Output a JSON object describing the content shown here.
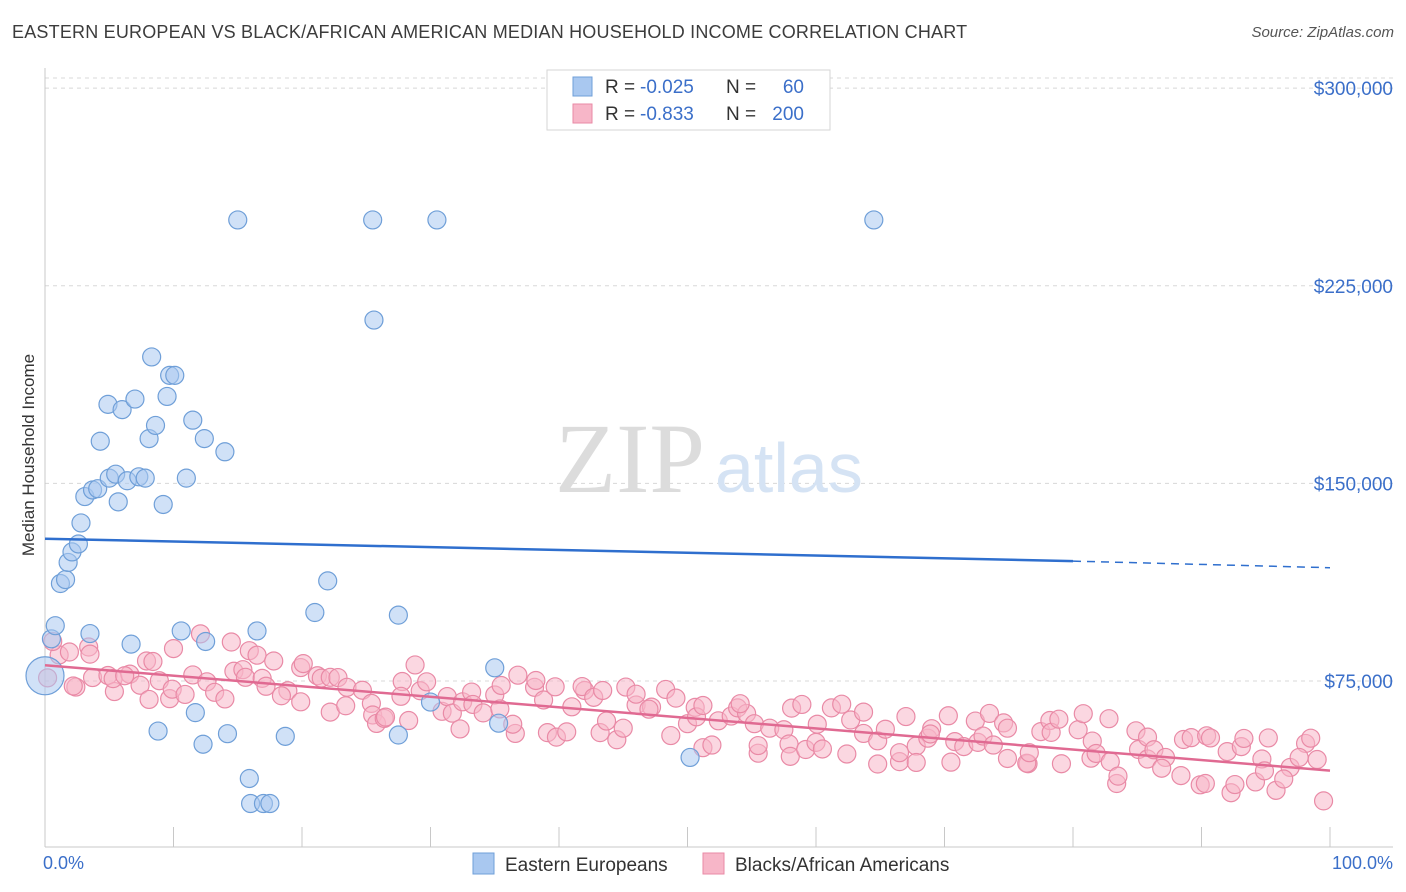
{
  "header": {
    "title": "EASTERN EUROPEAN VS BLACK/AFRICAN AMERICAN MEDIAN HOUSEHOLD INCOME CORRELATION CHART",
    "source": "Source: ZipAtlas.com"
  },
  "watermark": {
    "zip": "ZIP",
    "atlas": "atlas"
  },
  "colors": {
    "blue_fill": "#a9c8f0",
    "blue_stroke": "#6f9fd8",
    "blue_line": "#2f6fce",
    "pink_fill": "#f7b6c8",
    "pink_stroke": "#e98aa6",
    "pink_line": "#e06a92",
    "value_text": "#3b6fc9",
    "grid": "#d8d8d8"
  },
  "legend_box": {
    "rows": [
      {
        "r_label": "R =",
        "r_value": "-0.025",
        "n_label": "N =",
        "n_value": "60"
      },
      {
        "r_label": "R =",
        "r_value": "-0.833",
        "n_label": "N =",
        "n_value": "200"
      }
    ]
  },
  "chart_data": {
    "type": "scatter",
    "title": "EASTERN EUROPEAN VS BLACK/AFRICAN AMERICAN MEDIAN HOUSEHOLD INCOME CORRELATION CHART",
    "xlabel": "",
    "ylabel": "Median Household Income",
    "xlim": [
      0,
      100
    ],
    "ylim": [
      12000,
      305000
    ],
    "x_tick_labels": [
      "0.0%",
      "100.0%"
    ],
    "y_ticks": [
      {
        "value": 75000,
        "label": "$75,000"
      },
      {
        "value": 150000,
        "label": "$150,000"
      },
      {
        "value": 225000,
        "label": "$225,000"
      },
      {
        "value": 300000,
        "label": "$300,000"
      }
    ],
    "grid": "horizontal dashed",
    "legend_position": "bottom",
    "series": [
      {
        "name": "Eastern Europeans",
        "color": "#a9c8f0",
        "r": -0.025,
        "n": 60,
        "trend": {
          "x0": 0,
          "y0": 129000,
          "x1": 80,
          "y1": 120500,
          "dashed_to": 100,
          "y_dashed_end": 118000
        },
        "points": [
          [
            0,
            77000,
            2
          ],
          [
            0.5,
            91000,
            1
          ],
          [
            0.8,
            96000,
            1
          ],
          [
            1.2,
            112000,
            1
          ],
          [
            1.6,
            113500,
            1
          ],
          [
            1.8,
            120000,
            1
          ],
          [
            2.1,
            124000,
            1
          ],
          [
            2.6,
            127000,
            1
          ],
          [
            2.8,
            135000,
            1
          ],
          [
            3.1,
            145000,
            1
          ],
          [
            3.7,
            147500,
            1
          ],
          [
            4.1,
            148000,
            1
          ],
          [
            4.3,
            166000,
            1
          ],
          [
            4.9,
            180000,
            1
          ],
          [
            5.0,
            152000,
            1
          ],
          [
            5.5,
            153500,
            1
          ],
          [
            5.7,
            143000,
            1
          ],
          [
            6.0,
            178000,
            1
          ],
          [
            6.4,
            151000,
            1
          ],
          [
            7.0,
            182000,
            1
          ],
          [
            7.3,
            152500,
            1
          ],
          [
            7.8,
            152000,
            1
          ],
          [
            8.1,
            167000,
            1
          ],
          [
            8.3,
            198000,
            1
          ],
          [
            8.6,
            172000,
            1
          ],
          [
            9.2,
            142000,
            1
          ],
          [
            9.5,
            183000,
            1
          ],
          [
            9.7,
            191000,
            1
          ],
          [
            10.1,
            191000,
            1
          ],
          [
            11.0,
            152000,
            1
          ],
          [
            11.5,
            174000,
            1
          ],
          [
            12.4,
            167000,
            1
          ],
          [
            14.0,
            162000,
            1
          ],
          [
            15.0,
            250000,
            1
          ],
          [
            25.5,
            250000,
            1
          ],
          [
            25.6,
            212000,
            1
          ],
          [
            30.5,
            250000,
            1
          ],
          [
            64.5,
            250000,
            1
          ],
          [
            27.5,
            100000,
            1
          ],
          [
            21.0,
            101000,
            1
          ],
          [
            22.0,
            113000,
            1
          ],
          [
            16.5,
            94000,
            1
          ],
          [
            12.5,
            90000,
            1
          ],
          [
            10.6,
            94000,
            1
          ],
          [
            3.5,
            93000,
            1
          ],
          [
            6.7,
            89000,
            1
          ],
          [
            8.8,
            56000,
            1
          ],
          [
            11.7,
            63000,
            1
          ],
          [
            12.3,
            51000,
            1
          ],
          [
            14.2,
            55000,
            1
          ],
          [
            15.9,
            38000,
            1
          ],
          [
            16.0,
            28500,
            1
          ],
          [
            17.0,
            28500,
            1
          ],
          [
            17.5,
            28500,
            1
          ],
          [
            18.7,
            54000,
            1
          ],
          [
            27.5,
            54500,
            1
          ],
          [
            30.0,
            67000,
            1
          ],
          [
            35.0,
            80000,
            1
          ],
          [
            35.3,
            59000,
            1
          ],
          [
            50.2,
            46000,
            1
          ]
        ]
      },
      {
        "name": "Blacks/African Americans",
        "color": "#f7b6c8",
        "r": -0.833,
        "n": 200,
        "trend": {
          "x0": 0,
          "y0": 81000,
          "x1": 100,
          "y1": 41000
        },
        "points": []
      }
    ]
  },
  "bottom_legend": {
    "items": [
      {
        "label": "Eastern Europeans"
      },
      {
        "label": "Blacks/African Americans"
      }
    ]
  }
}
